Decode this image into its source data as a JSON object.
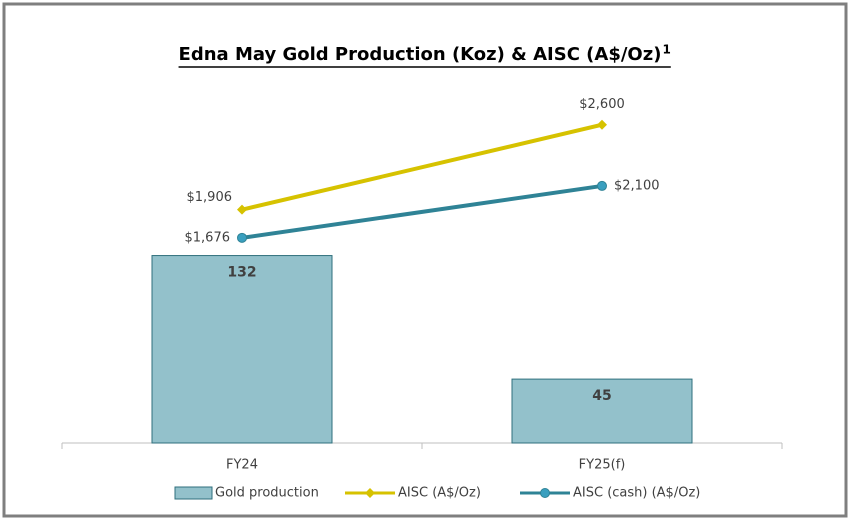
{
  "chart_data": {
    "type": "bar_line",
    "title": "Edna May Gold Production (Koz) & AISC (A$/Oz)",
    "title_note": "1",
    "categories": [
      "FY24",
      "FY25(f)"
    ],
    "ylim": [
      0,
      250
    ],
    "y2lim": [
      0,
      2900
    ],
    "series": [
      {
        "name": "Gold production",
        "type": "bar",
        "color": "#93c1cb",
        "values": [
          132,
          45
        ]
      },
      {
        "name": "AISC (A$/Oz)",
        "type": "line",
        "marker": "diamond",
        "axis": "y2",
        "color": "#d6c200",
        "values": [
          1906,
          2600
        ],
        "value_labels": [
          "$1,906",
          "$2,600"
        ]
      },
      {
        "name": "AISC (cash) (A$/Oz)",
        "type": "line",
        "marker": "circle",
        "axis": "y2",
        "color": "#2f8396",
        "values": [
          1676,
          2100
        ],
        "value_labels": [
          "$1,676",
          "$2,100"
        ]
      }
    ]
  }
}
